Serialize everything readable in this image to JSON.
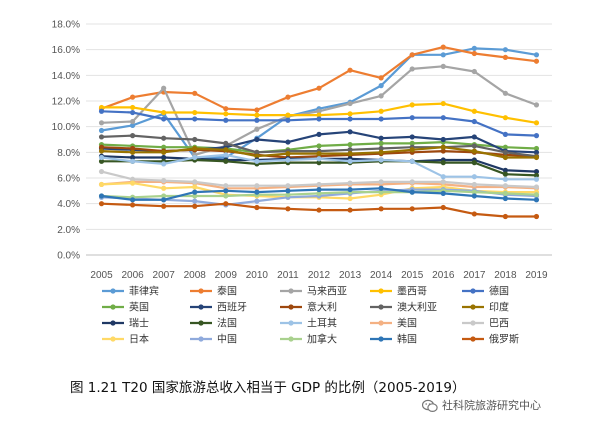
{
  "caption": "图 1.21 T20 国家旅游总收入相当于 GDP 的比例（2005-2019）",
  "watermark": {
    "text": "社科院旅游研究中心",
    "icon": "wechat-icon"
  },
  "chart_data": {
    "type": "line",
    "ylim": [
      0,
      18
    ],
    "ytick_step": 2,
    "y_format": "percent_1dp",
    "grid": "horizontal",
    "legend_position": "bottom",
    "x": [
      "2005",
      "2006",
      "2007",
      "2008",
      "2009",
      "2010",
      "2011",
      "2012",
      "2013",
      "2014",
      "2015",
      "2016",
      "2017",
      "2018",
      "2019"
    ],
    "series": [
      {
        "name": "菲律宾",
        "color": "#5b9bd5",
        "values": [
          9.7,
          10.1,
          11.0,
          7.6,
          7.6,
          9.1,
          10.8,
          11.4,
          11.9,
          13.2,
          15.6,
          15.6,
          16.1,
          16.0,
          15.6
        ]
      },
      {
        "name": "泰国",
        "color": "#ed7d31",
        "values": [
          11.4,
          12.3,
          12.7,
          12.6,
          11.4,
          11.3,
          12.3,
          13.0,
          14.4,
          13.8,
          15.6,
          16.2,
          15.7,
          15.4,
          15.1
        ]
      },
      {
        "name": "马来西亚",
        "color": "#a5a5a5",
        "values": [
          10.3,
          10.4,
          13.0,
          7.8,
          8.5,
          9.8,
          10.8,
          11.2,
          11.8,
          12.4,
          14.5,
          14.7,
          14.3,
          12.6,
          11.7
        ]
      },
      {
        "name": "墨西哥",
        "color": "#ffc000",
        "values": [
          11.5,
          11.5,
          11.1,
          11.1,
          11.0,
          10.9,
          10.9,
          10.9,
          11.0,
          11.2,
          11.7,
          11.8,
          11.2,
          10.7,
          10.3
        ]
      },
      {
        "name": "德国",
        "color": "#4472c4",
        "values": [
          11.2,
          11.1,
          10.6,
          10.6,
          10.5,
          10.5,
          10.5,
          10.6,
          10.6,
          10.6,
          10.7,
          10.7,
          10.4,
          9.4,
          9.3
        ]
      },
      {
        "name": "英国",
        "color": "#70ad47",
        "values": [
          8.6,
          8.5,
          8.4,
          8.4,
          8.3,
          8.0,
          8.2,
          8.5,
          8.6,
          8.7,
          8.7,
          8.8,
          8.6,
          8.4,
          8.3
        ]
      },
      {
        "name": "西班牙",
        "color": "#264478",
        "values": [
          8.3,
          8.2,
          8.1,
          8.2,
          8.4,
          9.0,
          8.8,
          9.4,
          9.6,
          9.1,
          9.2,
          9.0,
          9.2,
          8.1,
          8.0
        ]
      },
      {
        "name": "意大利",
        "color": "#9e480e",
        "values": [
          8.4,
          8.3,
          8.1,
          8.2,
          8.1,
          7.8,
          7.6,
          7.7,
          7.8,
          7.9,
          8.0,
          8.1,
          8.0,
          7.8,
          7.7
        ]
      },
      {
        "name": "澳大利亚",
        "color": "#636363",
        "values": [
          9.2,
          9.3,
          9.1,
          9.0,
          8.7,
          8.0,
          8.1,
          8.1,
          8.2,
          8.3,
          8.4,
          8.4,
          8.5,
          8.0,
          7.7
        ]
      },
      {
        "name": "印度",
        "color": "#997300",
        "values": [
          8.1,
          8.0,
          8.0,
          8.3,
          8.2,
          7.7,
          7.9,
          7.9,
          7.9,
          8.0,
          8.2,
          8.4,
          8.1,
          7.6,
          7.6
        ]
      },
      {
        "name": "瑞士",
        "color": "#1f3864",
        "values": [
          7.7,
          7.6,
          7.6,
          7.5,
          7.4,
          7.4,
          7.5,
          7.5,
          7.5,
          7.4,
          7.3,
          7.4,
          7.4,
          6.6,
          6.5
        ]
      },
      {
        "name": "法国",
        "color": "#375623",
        "values": [
          7.3,
          7.3,
          7.3,
          7.4,
          7.3,
          7.1,
          7.2,
          7.2,
          7.2,
          7.3,
          7.3,
          7.2,
          7.2,
          6.3,
          6.2
        ]
      },
      {
        "name": "土耳其",
        "color": "#9dc3e6",
        "values": [
          7.6,
          7.3,
          7.1,
          7.6,
          7.8,
          7.3,
          7.4,
          7.5,
          7.3,
          7.4,
          7.3,
          6.1,
          6.1,
          5.9,
          5.9
        ]
      },
      {
        "name": "美国",
        "color": "#f4b183",
        "values": [
          5.5,
          5.7,
          5.7,
          5.6,
          5.2,
          5.2,
          5.3,
          5.4,
          5.5,
          5.5,
          5.6,
          5.5,
          5.3,
          5.3,
          5.2
        ]
      },
      {
        "name": "巴西",
        "color": "#c9c9c9",
        "values": [
          6.5,
          5.9,
          5.8,
          5.7,
          5.4,
          5.4,
          5.4,
          5.5,
          5.6,
          5.7,
          5.7,
          5.7,
          5.5,
          5.4,
          5.3
        ]
      },
      {
        "name": "日本",
        "color": "#ffd966",
        "values": [
          5.5,
          5.6,
          5.2,
          5.3,
          4.7,
          4.6,
          4.5,
          4.5,
          4.4,
          4.7,
          5.2,
          5.3,
          5.0,
          4.9,
          4.9
        ]
      },
      {
        "name": "中国",
        "color": "#8faadc",
        "values": [
          4.5,
          4.4,
          4.3,
          4.2,
          3.9,
          4.2,
          4.5,
          4.6,
          4.8,
          5.0,
          5.1,
          5.1,
          5.0,
          4.7,
          4.6
        ]
      },
      {
        "name": "加拿大",
        "color": "#a9d18e",
        "values": [
          4.6,
          4.5,
          4.6,
          4.6,
          4.6,
          4.7,
          4.7,
          4.8,
          4.9,
          4.9,
          4.9,
          5.0,
          4.9,
          4.8,
          4.7
        ]
      },
      {
        "name": "韩国",
        "color": "#2e75b6",
        "values": [
          4.6,
          4.3,
          4.3,
          4.9,
          5.0,
          4.9,
          5.0,
          5.1,
          5.1,
          5.2,
          4.9,
          4.8,
          4.6,
          4.4,
          4.3
        ]
      },
      {
        "name": "俄罗斯",
        "color": "#c55a11",
        "values": [
          4.0,
          3.9,
          3.8,
          3.8,
          4.0,
          3.7,
          3.6,
          3.5,
          3.5,
          3.6,
          3.6,
          3.7,
          3.2,
          3.0,
          3.0
        ]
      }
    ]
  }
}
